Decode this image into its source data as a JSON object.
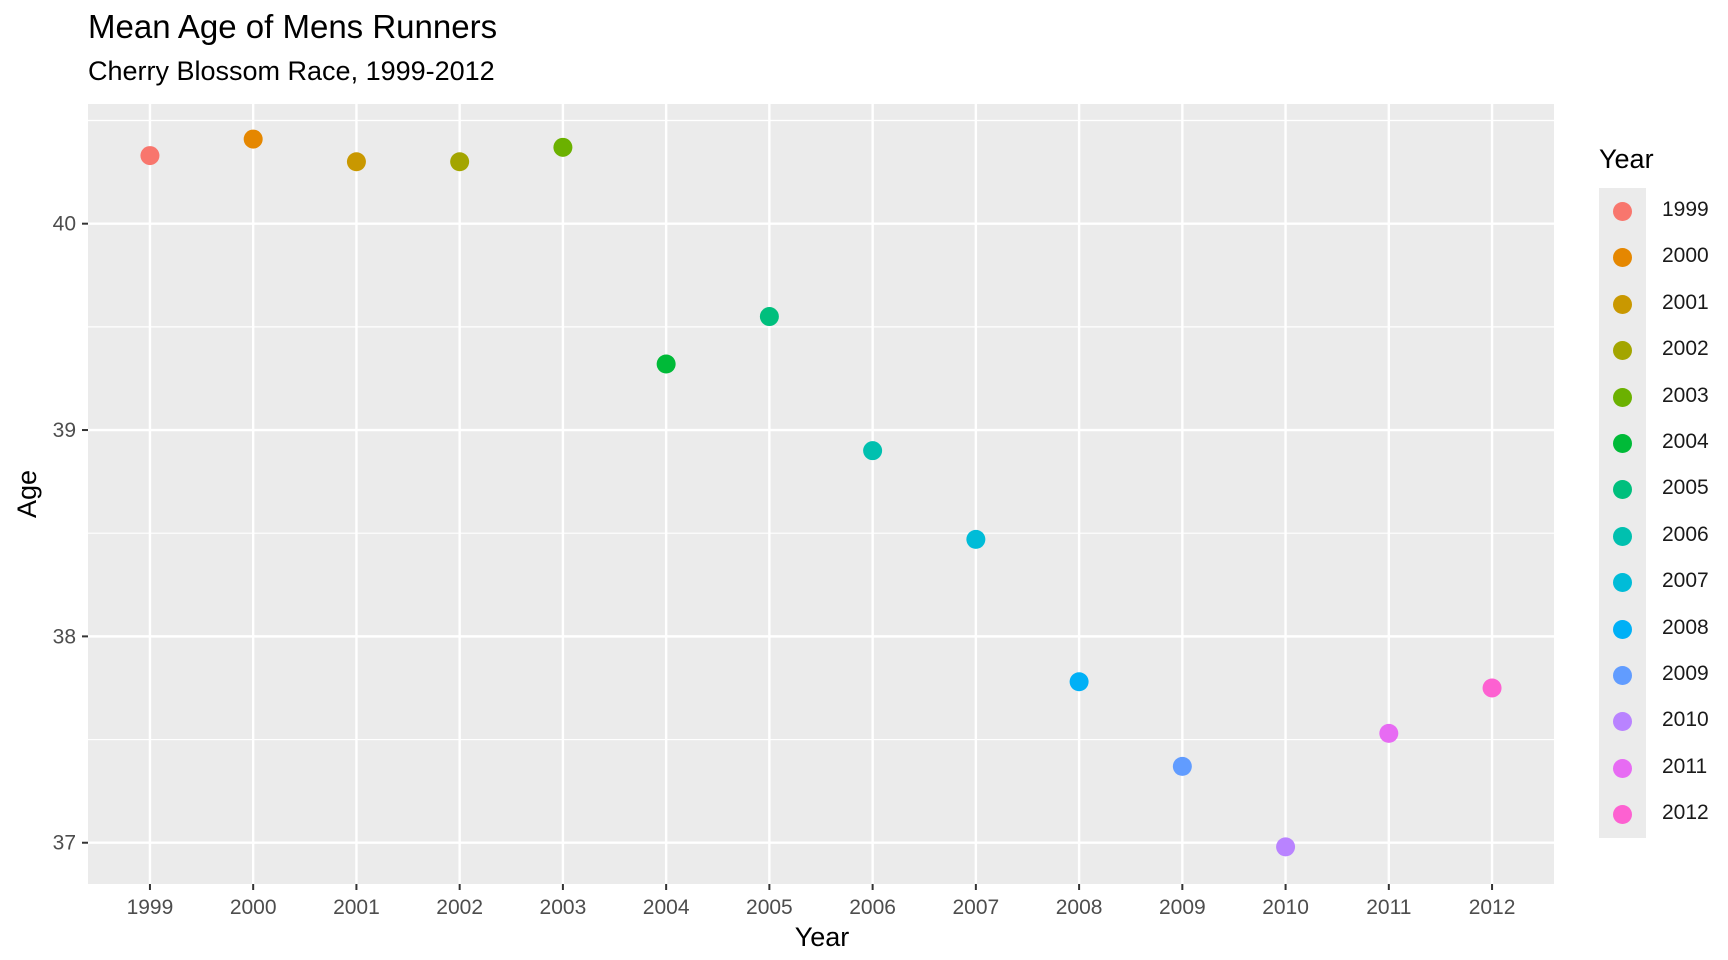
{
  "chart_data": {
    "type": "scatter",
    "title": "Mean Age of Mens Runners",
    "subtitle": "Cherry Blossom Race, 1999-2012",
    "xlabel": "Year",
    "ylabel": "Age",
    "x": [
      "1999",
      "2000",
      "2001",
      "2002",
      "2003",
      "2004",
      "2005",
      "2006",
      "2007",
      "2008",
      "2009",
      "2010",
      "2011",
      "2012"
    ],
    "y": [
      40.33,
      40.41,
      40.3,
      40.3,
      40.37,
      39.32,
      39.55,
      38.9,
      38.47,
      37.78,
      37.37,
      36.98,
      37.53,
      37.75
    ],
    "ylim": [
      36.8,
      40.58
    ],
    "yticks": [
      37,
      38,
      39,
      40
    ],
    "grid": true,
    "legend": {
      "title": "Year",
      "position": "right",
      "entries": [
        "1999",
        "2000",
        "2001",
        "2002",
        "2003",
        "2004",
        "2005",
        "2006",
        "2007",
        "2008",
        "2009",
        "2010",
        "2011",
        "2012"
      ]
    },
    "colors": [
      "#F8766D",
      "#E58700",
      "#C99800",
      "#A3A500",
      "#6BB100",
      "#00BA38",
      "#00BF7D",
      "#00C0AF",
      "#00BCD8",
      "#00B0F6",
      "#619CFF",
      "#B983FF",
      "#E76BF3",
      "#FD61D1"
    ]
  }
}
